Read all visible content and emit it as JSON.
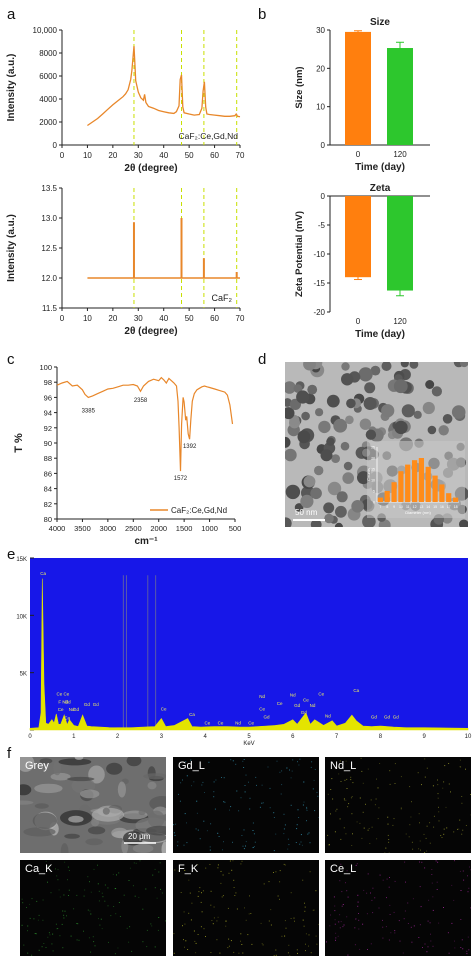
{
  "panel_letters": {
    "a": "a",
    "b": "b",
    "c": "c",
    "d": "d",
    "e": "e",
    "f": "f"
  },
  "chart_data": [
    {
      "id": "a-top",
      "type": "line",
      "ylabel": "Intensity (a.u.)",
      "xlabel": "2θ (degree)",
      "xlim": [
        0,
        70
      ],
      "ylim": [
        0,
        10000
      ],
      "xticks": [
        "0",
        "10",
        "20",
        "30",
        "40",
        "50",
        "60",
        "70"
      ],
      "yticks": [
        "0",
        "2000",
        "4000",
        "6000",
        "8000",
        "10,000"
      ],
      "annotation": "CaF₂:Ce,Gd,Nd",
      "color": "#E8872A",
      "reference_lines_x": [
        28.3,
        47.0,
        55.8,
        68.7
      ],
      "series": [
        {
          "x": [
            10,
            12,
            14,
            16,
            18,
            20,
            22,
            24,
            25,
            26,
            27,
            27.5,
            28,
            28.3,
            28.6,
            29,
            30,
            31,
            32,
            32.5,
            33,
            34,
            36,
            38,
            40,
            42,
            44,
            45,
            46,
            46.5,
            47,
            47.5,
            48,
            50,
            52,
            54,
            55,
            55.5,
            56,
            56.5,
            57,
            58,
            60,
            62,
            64,
            66,
            68,
            68.5,
            69,
            70
          ],
          "y": [
            1700,
            2000,
            2300,
            2700,
            3100,
            3500,
            3850,
            4200,
            4450,
            4800,
            5700,
            6500,
            7800,
            8600,
            7400,
            5600,
            4600,
            4100,
            3900,
            4400,
            3700,
            3350,
            3200,
            3000,
            2900,
            2800,
            2750,
            2900,
            3400,
            5700,
            6100,
            3300,
            2800,
            2700,
            2600,
            2650,
            3200,
            4700,
            5500,
            3300,
            2700,
            2650,
            2600,
            2550,
            2500,
            2500,
            2550,
            2700,
            2500,
            2450
          ]
        }
      ]
    },
    {
      "id": "a-bottom",
      "type": "bar",
      "ylabel": "Intensity (a.u.)",
      "xlabel": "2θ (degree)",
      "xlim": [
        0,
        70
      ],
      "ylim": [
        11.5,
        13.5
      ],
      "baseline": 12.0,
      "xticks": [
        "0",
        "10",
        "20",
        "30",
        "40",
        "50",
        "60",
        "70"
      ],
      "yticks": [
        "11.5",
        "12.0",
        "12.5",
        "13.0",
        "13.5"
      ],
      "annotation": "CaF₂",
      "color": "#E8872A",
      "reference_lines_x": [
        28.3,
        47.0,
        55.8,
        68.7
      ],
      "x": [
        28.3,
        47.0,
        55.8,
        68.7
      ],
      "values": [
        12.93,
        13.0,
        12.33,
        12.1
      ]
    },
    {
      "id": "b-size",
      "type": "bar",
      "title": "Size",
      "ylabel": "Size (nm)",
      "xlabel": "Time (day)",
      "categories": [
        "0",
        "120"
      ],
      "values": [
        29.5,
        25.3
      ],
      "errors": [
        0.3,
        1.5
      ],
      "colors": [
        "#FF7F0E",
        "#2DC72D"
      ],
      "ylim": [
        0,
        30
      ],
      "yticks": [
        "0",
        "10",
        "20",
        "30"
      ]
    },
    {
      "id": "b-zeta",
      "type": "bar",
      "title": "Zeta",
      "ylabel": "Zeta Potential (mV)",
      "xlabel": "Time (day)",
      "categories": [
        "0",
        "120"
      ],
      "values": [
        -14.0,
        -16.3
      ],
      "errors": [
        0.4,
        0.9
      ],
      "colors": [
        "#FF7F0E",
        "#2DC72D"
      ],
      "ylim": [
        -20,
        0
      ],
      "yticks": [
        "0",
        "-5",
        "-10",
        "-15",
        "-20"
      ]
    },
    {
      "id": "c-ftir",
      "type": "line",
      "ylabel": "T %",
      "xlabel": "cm⁻¹",
      "xlim": [
        4000,
        500
      ],
      "ylim": [
        80,
        100
      ],
      "xticks": [
        "4000",
        "3500",
        "3000",
        "2500",
        "2000",
        "1500",
        "1000",
        "500"
      ],
      "yticks": [
        "80",
        "82",
        "84",
        "86",
        "88",
        "90",
        "92",
        "94",
        "96",
        "98",
        "100"
      ],
      "legend": "CaF₂:Ce,Gd,Nd",
      "color": "#E8872A",
      "annotations": [
        {
          "label": "3385",
          "x": 3385,
          "y": 95.2
        },
        {
          "label": "2358",
          "x": 2358,
          "y": 96.6
        },
        {
          "label": "1572",
          "x": 1572,
          "y": 86.3
        },
        {
          "label": "1392",
          "x": 1392,
          "y": 90.5
        }
      ],
      "series": [
        {
          "x": [
            4000,
            3900,
            3800,
            3700,
            3600,
            3500,
            3450,
            3385,
            3300,
            3200,
            3100,
            3000,
            2900,
            2800,
            2700,
            2600,
            2500,
            2420,
            2358,
            2300,
            2200,
            2100,
            2000,
            1950,
            1900,
            1850,
            1800,
            1750,
            1700,
            1650,
            1620,
            1600,
            1572,
            1550,
            1520,
            1500,
            1470,
            1450,
            1420,
            1392,
            1370,
            1340,
            1300,
            1250,
            1200,
            1150,
            1100,
            1050,
            1000,
            900,
            800,
            700,
            650,
            600,
            550
          ],
          "y": [
            97.6,
            97.9,
            98.1,
            97.5,
            97.6,
            97.0,
            96.4,
            96.0,
            96.2,
            96.5,
            96.8,
            97.1,
            97.2,
            97.4,
            97.6,
            97.6,
            97.7,
            97.5,
            96.8,
            97.5,
            98.1,
            98.4,
            98.2,
            98.6,
            98.3,
            97.9,
            98.5,
            98.2,
            97.9,
            97.5,
            95.5,
            92.0,
            86.3,
            92.5,
            96.0,
            95.4,
            93.0,
            93.5,
            91.2,
            90.5,
            93.0,
            95.5,
            96.5,
            97.0,
            97.2,
            97.4,
            97.5,
            97.4,
            97.3,
            97.1,
            96.9,
            96.7,
            96.3,
            95.0,
            92.5
          ]
        }
      ]
    },
    {
      "id": "d-inset",
      "type": "bar",
      "ylabel": "Counts",
      "xlabel": "Diameter (nm)",
      "color": "#FF8C1A",
      "categories": [
        "7",
        "8",
        "9",
        "10",
        "11",
        "12",
        "13",
        "14",
        "15",
        "16",
        "17",
        "18"
      ],
      "values": [
        2,
        5,
        9,
        14,
        17,
        19,
        20,
        16,
        12,
        8,
        4,
        2
      ],
      "ylim": [
        0,
        25
      ],
      "yticks": [
        "0",
        "5",
        "10",
        "15",
        "20",
        "25"
      ]
    },
    {
      "id": "e-eds",
      "type": "line",
      "xlabel": "KeV",
      "xlim": [
        0,
        10
      ],
      "ylim": [
        0,
        15000
      ],
      "xticks": [
        "0",
        "1",
        "2",
        "3",
        "4",
        "5",
        "6",
        "7",
        "8",
        "9",
        "10"
      ],
      "yticks": [
        "",
        "5K",
        "10K",
        "15K"
      ],
      "background": "#1717E8",
      "fill": "#E4E400",
      "series": [
        {
          "x": [
            0,
            0.2,
            0.25,
            0.28,
            0.32,
            0.36,
            0.42,
            0.5,
            0.55,
            0.6,
            0.65,
            0.7,
            0.78,
            0.85,
            0.9,
            1.0,
            1.1,
            1.2,
            1.3,
            1.4,
            1.6,
            1.8,
            2.0,
            2.3,
            2.6,
            2.85,
            3.0,
            3.1,
            3.3,
            3.6,
            3.7,
            3.9,
            4.2,
            4.5,
            4.8,
            5.0,
            5.2,
            5.4,
            5.6,
            5.8,
            6.0,
            6.1,
            6.3,
            6.4,
            6.5,
            6.7,
            6.9,
            7.0,
            7.2,
            7.35,
            7.45,
            7.6,
            7.8,
            8.0,
            8.3,
            8.6,
            9.0,
            10.0
          ],
          "y": [
            150,
            200,
            1500,
            13200,
            4000,
            600,
            500,
            900,
            600,
            1400,
            500,
            500,
            1300,
            450,
            900,
            400,
            300,
            1300,
            350,
            300,
            250,
            220,
            200,
            200,
            250,
            300,
            1000,
            300,
            400,
            1000,
            300,
            250,
            300,
            300,
            250,
            250,
            300,
            350,
            400,
            500,
            900,
            500,
            1500,
            500,
            900,
            400,
            800,
            350,
            600,
            1300,
            800,
            350,
            300,
            350,
            250,
            200,
            200,
            150
          ]
        }
      ],
      "vertical_lines_x": [
        2.13,
        2.2,
        2.69,
        2.87
      ],
      "peak_labels": [
        {
          "t": "Ca",
          "x": 0.3,
          "y": 13500
        },
        {
          "t": "Ce Ce",
          "x": 0.75,
          "y": 3000
        },
        {
          "t": "F Nd",
          "x": 0.76,
          "y": 2300
        },
        {
          "t": "Gd",
          "x": 0.86,
          "y": 2300
        },
        {
          "t": "Gd",
          "x": 1.05,
          "y": 1650
        },
        {
          "t": "Ce",
          "x": 0.7,
          "y": 1650
        },
        {
          "t": "Nd",
          "x": 0.95,
          "y": 1650
        },
        {
          "t": "Gd",
          "x": 1.3,
          "y": 2100
        },
        {
          "t": "Gd",
          "x": 1.5,
          "y": 2100
        },
        {
          "t": "Ca",
          "x": 0.85,
          "y": 900
        },
        {
          "t": "Ce",
          "x": 3.05,
          "y": 1700
        },
        {
          "t": "Ca",
          "x": 3.7,
          "y": 1200
        },
        {
          "t": "Ce",
          "x": 4.05,
          "y": 500
        },
        {
          "t": "Ce",
          "x": 4.35,
          "y": 500
        },
        {
          "t": "Nd",
          "x": 4.75,
          "y": 500
        },
        {
          "t": "Ce",
          "x": 5.05,
          "y": 500
        },
        {
          "t": "Nd",
          "x": 5.3,
          "y": 2800
        },
        {
          "t": "Ce",
          "x": 5.3,
          "y": 1700
        },
        {
          "t": "Gd",
          "x": 5.4,
          "y": 1000
        },
        {
          "t": "Ce",
          "x": 5.7,
          "y": 2200
        },
        {
          "t": "Nd",
          "x": 6.0,
          "y": 2900
        },
        {
          "t": "Gd",
          "x": 6.1,
          "y": 2000
        },
        {
          "t": "Ce",
          "x": 6.3,
          "y": 2500
        },
        {
          "t": "Gd",
          "x": 6.25,
          "y": 1400
        },
        {
          "t": "Nd",
          "x": 6.45,
          "y": 2000
        },
        {
          "t": "Ce",
          "x": 6.65,
          "y": 3000
        },
        {
          "t": "Nd",
          "x": 6.8,
          "y": 1100
        },
        {
          "t": "Ca",
          "x": 7.45,
          "y": 3300
        },
        {
          "t": "Gd",
          "x": 7.85,
          "y": 1000
        },
        {
          "t": "Gd",
          "x": 8.15,
          "y": 1000
        },
        {
          "t": "Gd",
          "x": 8.35,
          "y": 1000
        }
      ]
    }
  ],
  "micrograph": {
    "scalebar_label": "50 nm"
  },
  "mapping": {
    "tiles": [
      {
        "label": "Grey",
        "tint": "#888"
      },
      {
        "label": "Gd_L",
        "tint": "#3aa6c8"
      },
      {
        "label": "Nd_L",
        "tint": "#a8a830"
      },
      {
        "label": "Ca_K",
        "tint": "#2f9a2f"
      },
      {
        "label": "F_K",
        "tint": "#b8b82a"
      },
      {
        "label": "Ce_L",
        "tint": "#b02aa8"
      }
    ],
    "scalebar_label": "20 μm"
  }
}
